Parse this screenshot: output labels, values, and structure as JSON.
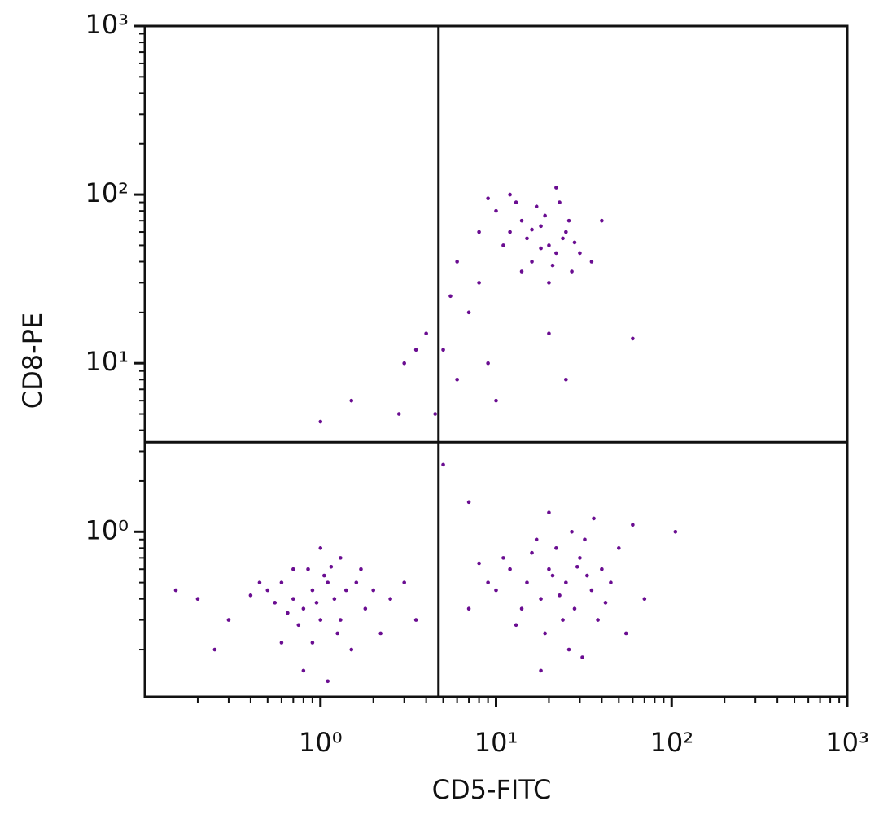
{
  "chart_data": {
    "type": "scatter",
    "xlabel": "CD5-FITC",
    "ylabel": "CD8-PE",
    "xscale": "log",
    "yscale": "log",
    "xlim": [
      0.1,
      1000
    ],
    "ylim": [
      0.105,
      1000
    ],
    "xticks": [
      {
        "value": 1,
        "label": "10⁰"
      },
      {
        "value": 10,
        "label": "10¹"
      },
      {
        "value": 100,
        "label": "10²"
      },
      {
        "value": 1000,
        "label": "10³"
      }
    ],
    "yticks": [
      {
        "value": 1,
        "label": "10⁰"
      },
      {
        "value": 10,
        "label": "10¹"
      },
      {
        "value": 100,
        "label": "10²"
      },
      {
        "value": 1000,
        "label": "10³"
      }
    ],
    "gates": {
      "x": 4.7,
      "y": 3.4
    },
    "color": "#6a0d91",
    "series": [
      {
        "x": [
          0.9,
          0.7,
          1.1,
          0.8,
          1.2,
          0.6,
          1.0,
          0.5,
          1.4,
          0.85,
          1.05,
          0.75,
          1.3,
          0.95,
          0.65,
          1.6,
          2.0,
          1.8,
          0.55,
          0.45,
          1.15,
          0.9,
          1.25,
          0.7,
          2.5,
          3.0,
          1.5,
          0.4,
          0.3,
          0.2,
          0.15,
          0.25,
          1.0,
          1.3,
          2.2,
          3.5,
          0.8,
          1.1,
          0.6,
          1.7,
          20,
          25,
          18,
          30,
          15,
          22,
          35,
          28,
          12,
          40,
          24,
          16,
          32,
          19,
          45,
          10,
          27,
          14,
          38,
          21,
          11,
          50,
          26,
          17,
          33,
          9,
          23,
          29,
          13,
          42,
          36,
          60,
          70,
          8,
          31,
          18,
          55,
          20,
          7,
          105,
          12,
          15,
          18,
          20,
          14,
          22,
          10,
          25,
          16,
          13,
          19,
          24,
          11,
          17,
          21,
          26,
          9,
          30,
          14,
          23,
          28,
          8,
          35,
          12,
          20,
          40,
          16,
          18,
          27,
          22,
          5,
          4,
          6,
          7,
          9,
          10,
          5.5,
          8,
          4.5,
          3.5,
          6,
          20,
          25,
          3,
          2.8,
          1.5,
          1.0,
          5,
          7,
          60
        ],
        "values": [
          0.45,
          0.4,
          0.5,
          0.35,
          0.4,
          0.5,
          0.3,
          0.45,
          0.45,
          0.6,
          0.55,
          0.28,
          0.3,
          0.38,
          0.33,
          0.5,
          0.45,
          0.35,
          0.38,
          0.5,
          0.62,
          0.22,
          0.25,
          0.6,
          0.4,
          0.5,
          0.2,
          0.42,
          0.3,
          0.4,
          0.45,
          0.2,
          0.8,
          0.7,
          0.25,
          0.3,
          0.15,
          0.13,
          0.22,
          0.6,
          0.6,
          0.5,
          0.4,
          0.7,
          0.5,
          0.8,
          0.45,
          0.35,
          0.6,
          0.6,
          0.3,
          0.75,
          0.9,
          0.25,
          0.5,
          0.45,
          1.0,
          0.35,
          0.3,
          0.55,
          0.7,
          0.8,
          0.2,
          0.9,
          0.55,
          0.5,
          0.42,
          0.62,
          0.28,
          0.38,
          1.2,
          1.1,
          0.4,
          0.65,
          0.18,
          0.15,
          0.25,
          1.3,
          0.35,
          1.0,
          60,
          55,
          65,
          50,
          70,
          45,
          80,
          60,
          40,
          90,
          75,
          55,
          50,
          85,
          38,
          70,
          95,
          45,
          35,
          90,
          52,
          60,
          40,
          100,
          30,
          70,
          62,
          48,
          35,
          110,
          12,
          15,
          8,
          20,
          10,
          6,
          25,
          30,
          5,
          12,
          40,
          15,
          8,
          10,
          5,
          6,
          4.5,
          2.5,
          1.5,
          14
        ]
      }
    ]
  }
}
